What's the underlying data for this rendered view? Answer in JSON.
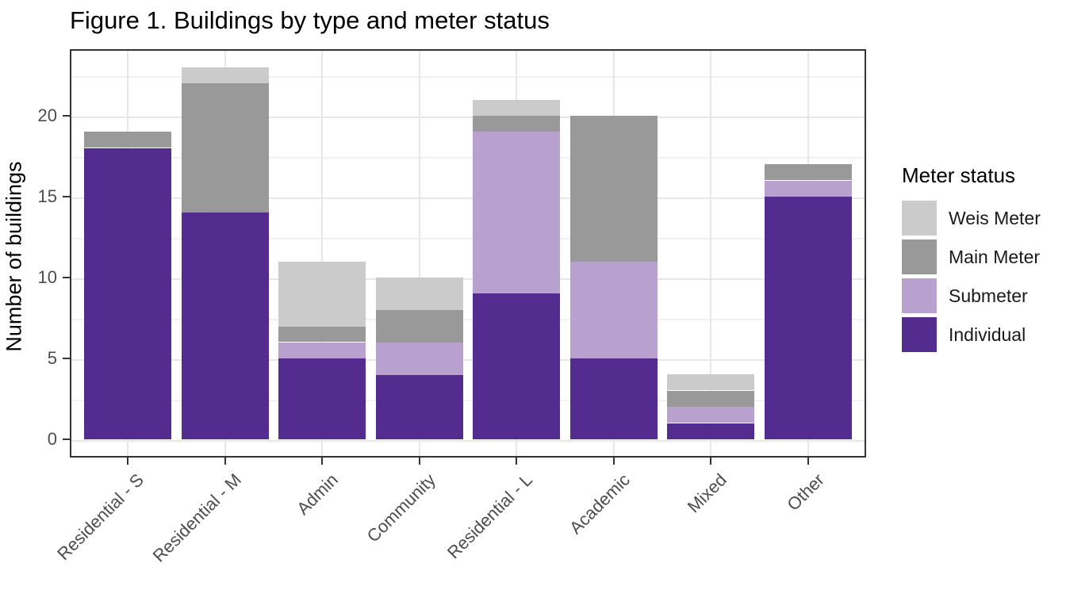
{
  "figure_title": "Figure 1. Buildings by type and meter status",
  "chart_data": {
    "type": "bar",
    "stacked": true,
    "title": "Figure 1. Buildings by type and meter status",
    "xlabel": "",
    "ylabel": "Number of buildings",
    "categories": [
      "Residential - S",
      "Residential - M",
      "Admin",
      "Community",
      "Residential - L",
      "Academic",
      "Mixed",
      "Other"
    ],
    "series": [
      {
        "name": "Individual",
        "color": "#542b8f",
        "values": [
          18,
          14,
          5,
          4,
          9,
          5,
          1,
          15
        ]
      },
      {
        "name": "Submeter",
        "color": "#b9a1cf",
        "values": [
          0,
          0,
          1,
          2,
          10,
          6,
          1,
          1
        ]
      },
      {
        "name": "Main Meter",
        "color": "#999999",
        "values": [
          1,
          8,
          1,
          2,
          1,
          9,
          1,
          1
        ]
      },
      {
        "name": "Weis Meter",
        "color": "#cbcbcb",
        "values": [
          0,
          1,
          4,
          2,
          1,
          0,
          1,
          0
        ]
      }
    ],
    "totals": [
      19,
      23,
      11,
      10,
      21,
      20,
      4,
      17
    ],
    "ylim": [
      0,
      24.15
    ],
    "yticks": [
      0,
      5,
      10,
      15,
      20
    ],
    "yminor": [
      2.5,
      7.5,
      12.5,
      17.5,
      22.5
    ],
    "grid": true,
    "legend": {
      "title": "Meter status",
      "position": "right",
      "entries": [
        "Weis Meter",
        "Main Meter",
        "Submeter",
        "Individual"
      ]
    }
  }
}
